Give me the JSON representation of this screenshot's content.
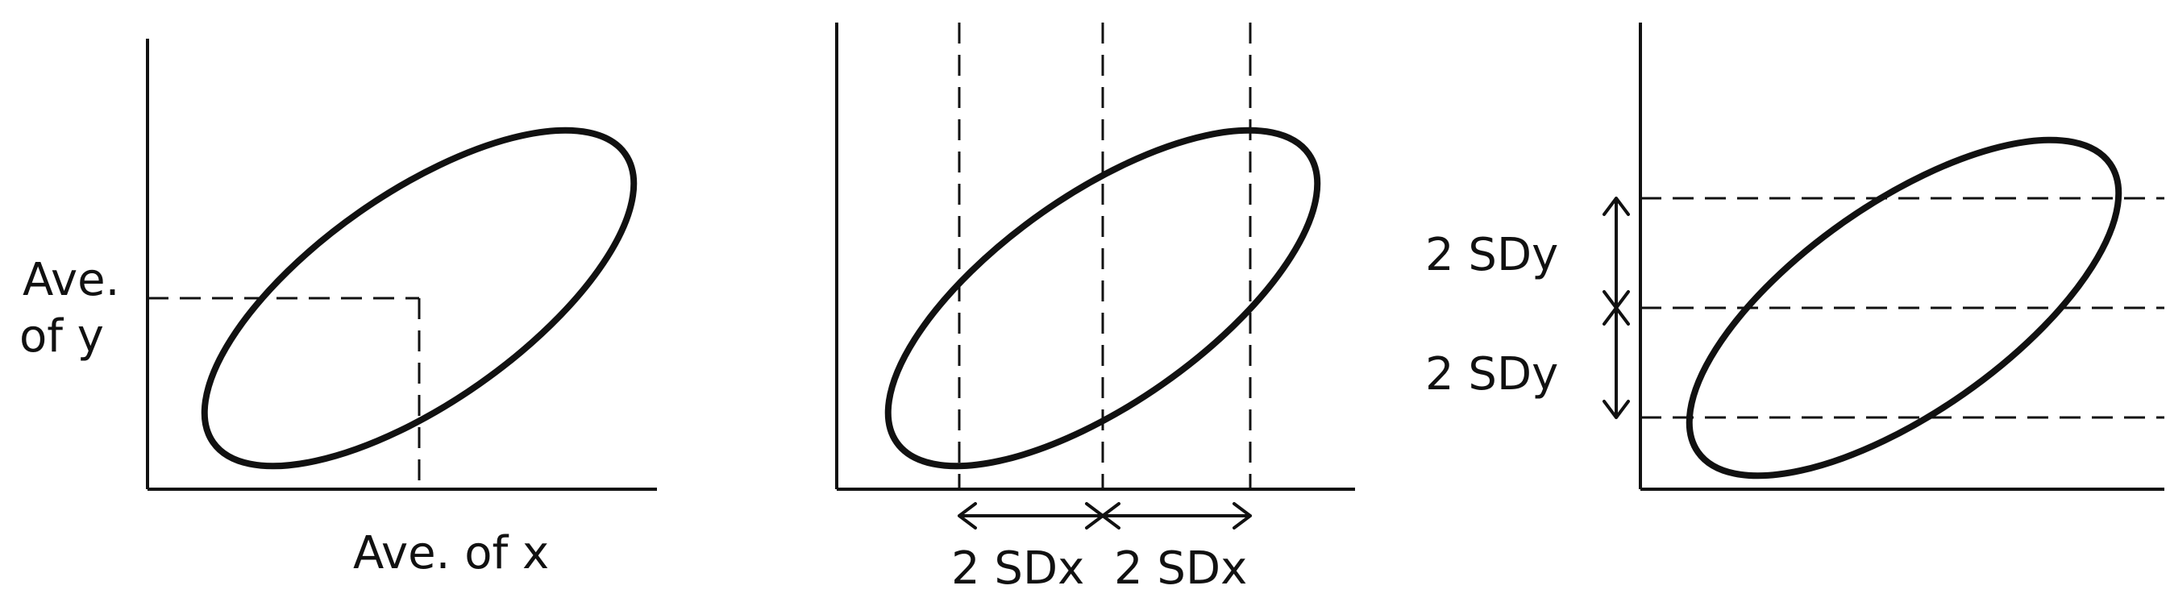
{
  "panels": [
    {
      "labels": {
        "y_mean_line1": "Ave.",
        "y_mean_line2": "of y",
        "x_mean": "Ave. of x"
      }
    },
    {
      "labels": {
        "left_sd": "2 SDx",
        "right_sd": "2 SDx"
      }
    },
    {
      "labels": {
        "upper_sd": "2 SDy",
        "lower_sd": "2 SDy"
      }
    }
  ]
}
